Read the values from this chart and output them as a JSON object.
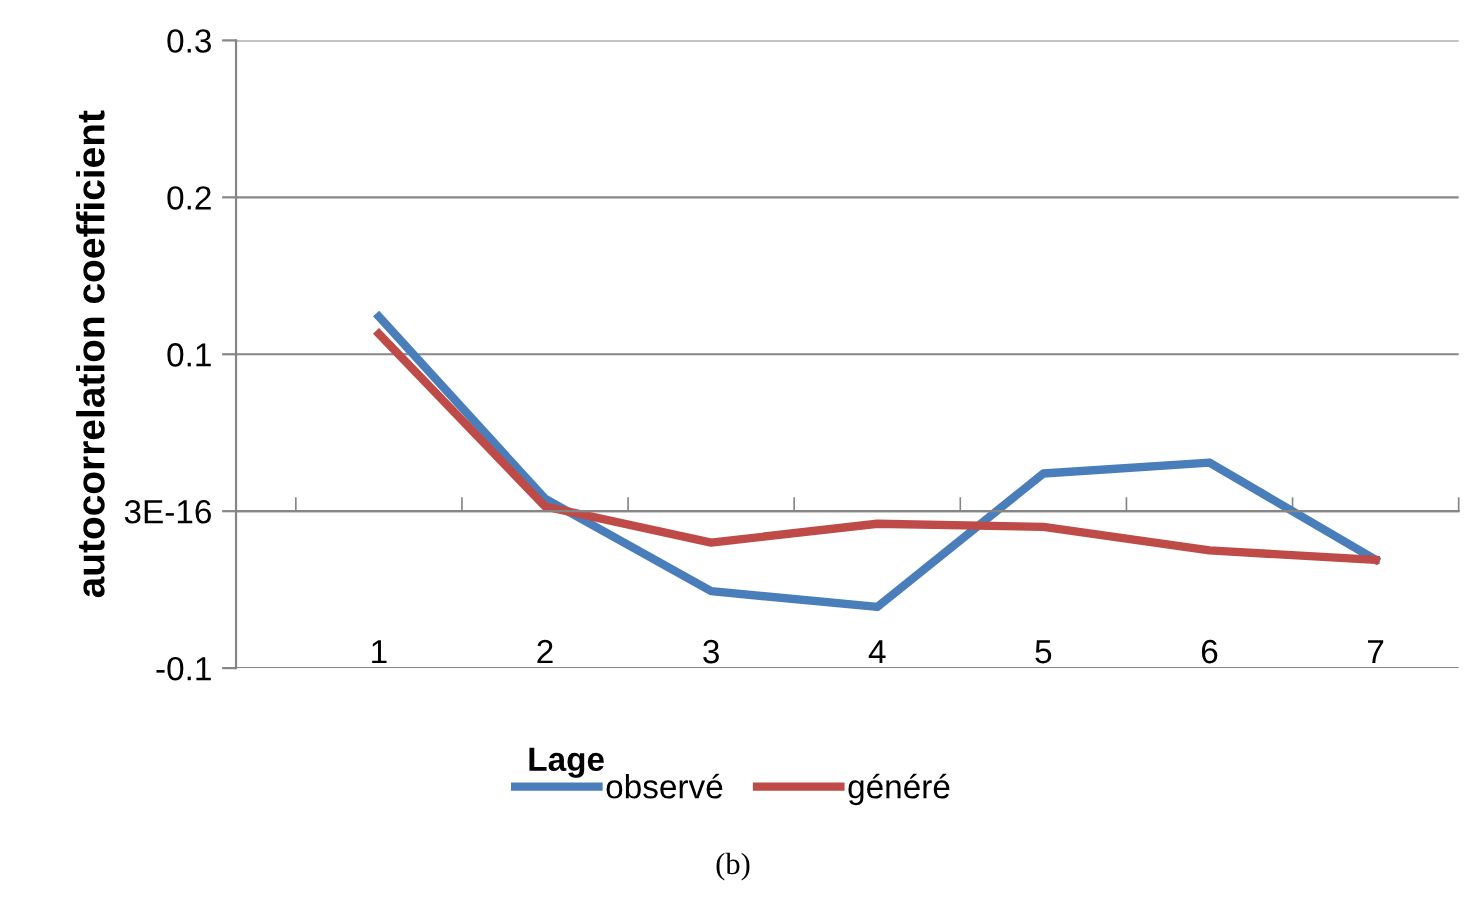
{
  "chart_data": {
    "type": "line",
    "categories": [
      "1",
      "2",
      "3",
      "4",
      "5",
      "6",
      "7"
    ],
    "xlabel": "Lage",
    "ylabel": "autocorrelation coefficient",
    "series": [
      {
        "name": "observé",
        "color": "#4a7ebb",
        "values": [
          0.124,
          0.008,
          -0.051,
          -0.061,
          0.024,
          0.031,
          -0.031
        ]
      },
      {
        "name": "généré",
        "color": "#be4b48",
        "values": [
          0.113,
          0.003,
          -0.02,
          -0.008,
          -0.01,
          -0.025,
          -0.031
        ]
      }
    ],
    "ylim": [
      -0.1,
      0.3
    ],
    "yticks": [
      -0.1,
      {
        "value": 0,
        "label": "3E-16"
      },
      0.1,
      0.2,
      0.3
    ],
    "grid": "y",
    "legend": "bottom",
    "marker": "none",
    "line_style": "solid",
    "annotations": [
      "(b)"
    ]
  }
}
